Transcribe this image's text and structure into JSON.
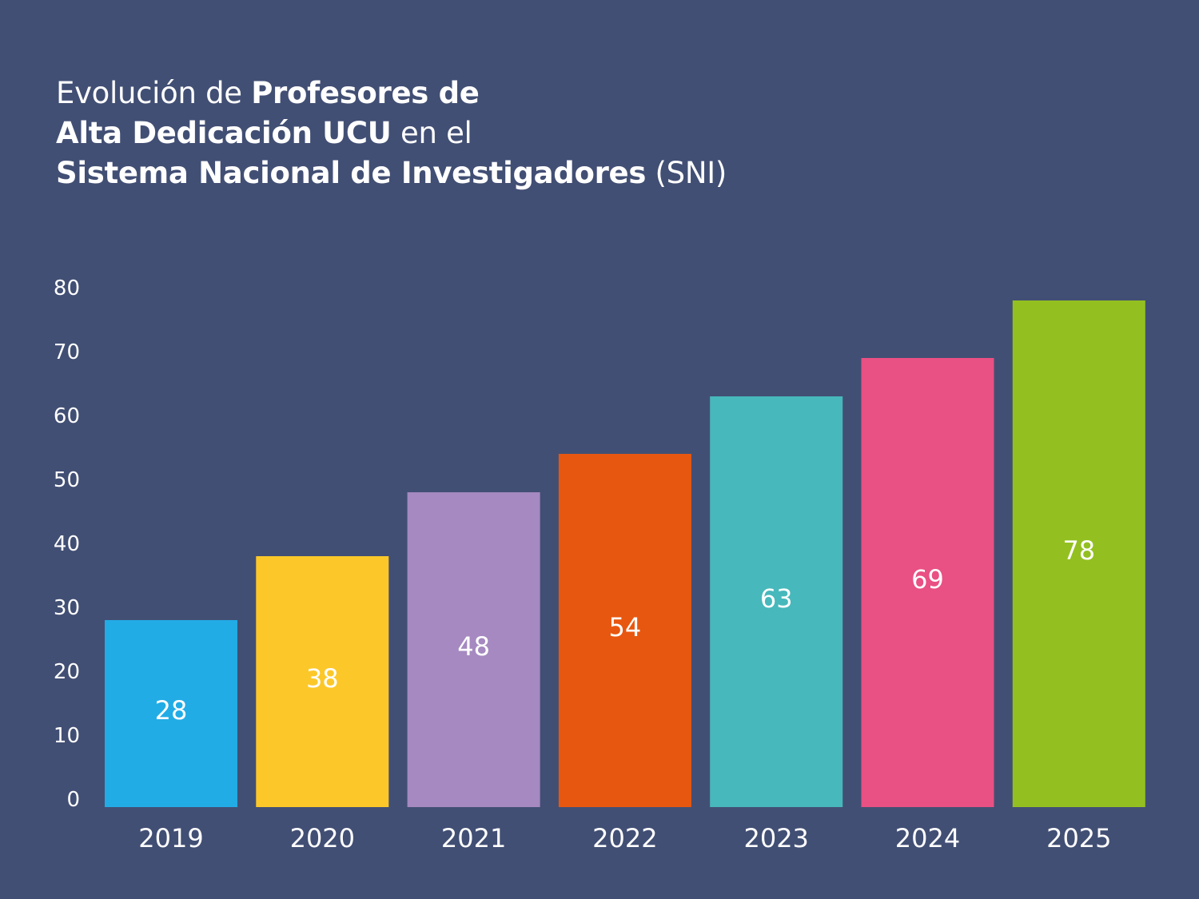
{
  "title": {
    "line1_regular": "Evolución de ",
    "line1_bold": "Profesores de",
    "line2_bold": "Alta Dedicación UCU",
    "line2_regular": " en el",
    "line3_bold": "Sistema Nacional de Investigadores",
    "line3_regular": " (SNI)"
  },
  "chart_data": {
    "type": "bar",
    "title": "Evolución de Profesores de Alta Dedicación UCU en el Sistema Nacional de Investigadores (SNI)",
    "categories": [
      "2019",
      "2020",
      "2021",
      "2022",
      "2023",
      "2024",
      "2025"
    ],
    "values": [
      28,
      38,
      48,
      54,
      63,
      69,
      78
    ],
    "colors": [
      "#22ace6",
      "#fcc829",
      "#a589c0",
      "#e8570f",
      "#47b8bc",
      "#e95083",
      "#93c020"
    ],
    "xlabel": "",
    "ylabel": "",
    "ylim": [
      0,
      80
    ],
    "yticks": [
      0,
      10,
      20,
      30,
      40,
      50,
      60,
      70,
      80
    ],
    "grid": false,
    "legend": "none"
  }
}
